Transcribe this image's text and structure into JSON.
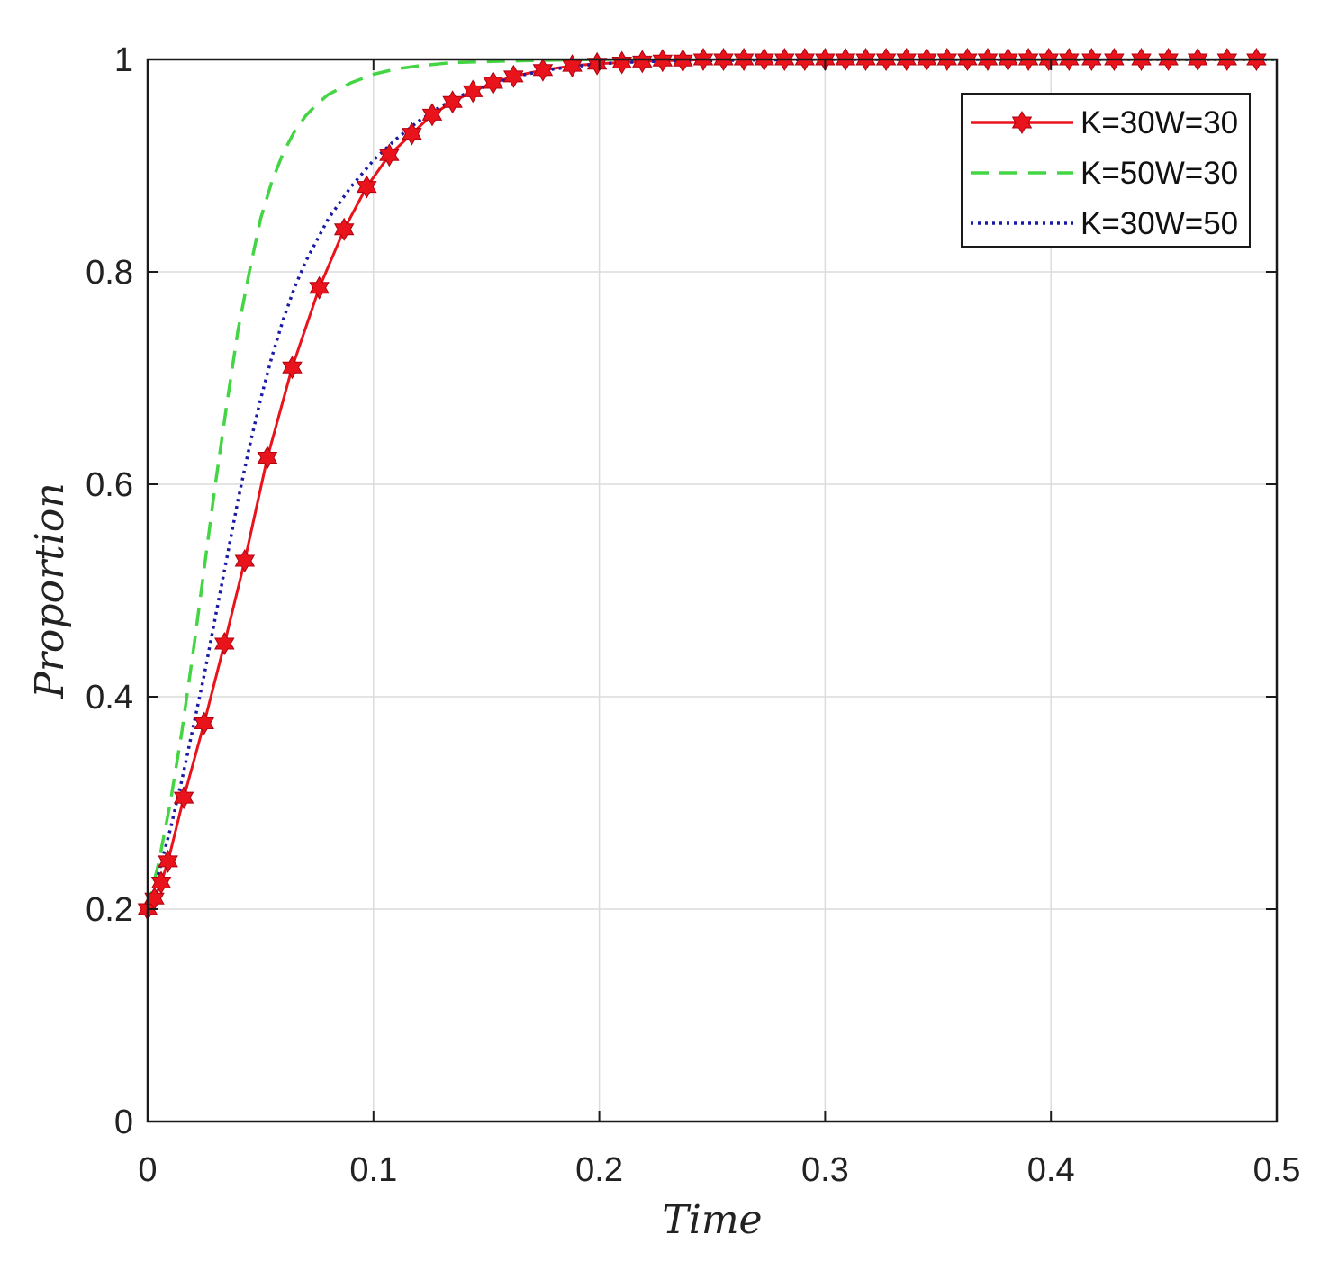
{
  "chart_data": {
    "type": "line",
    "xlabel": "Time",
    "ylabel": "Proportion",
    "xlim": [
      0,
      0.5
    ],
    "ylim": [
      0,
      1
    ],
    "xticks": [
      "0",
      "0.1",
      "0.2",
      "0.3",
      "0.4",
      "0.5"
    ],
    "yticks": [
      "0",
      "0.2",
      "0.4",
      "0.6",
      "0.8",
      "1"
    ],
    "grid": true,
    "legend_position": "top-right",
    "series": [
      {
        "name": "K=30W=30",
        "color": "#e8131b",
        "style": "solid",
        "marker": "hexagram",
        "x": [
          0,
          0.003,
          0.006,
          0.009,
          0.016,
          0.025,
          0.034,
          0.043,
          0.053,
          0.064,
          0.076,
          0.087,
          0.097,
          0.107,
          0.117,
          0.126,
          0.135,
          0.144,
          0.153,
          0.162,
          0.175,
          0.188,
          0.199,
          0.21,
          0.219,
          0.228,
          0.237,
          0.246,
          0.255,
          0.264,
          0.273,
          0.282,
          0.291,
          0.3,
          0.309,
          0.318,
          0.327,
          0.336,
          0.345,
          0.354,
          0.363,
          0.372,
          0.381,
          0.39,
          0.399,
          0.408,
          0.418,
          0.428,
          0.44,
          0.452,
          0.465,
          0.478,
          0.491
        ],
        "y": [
          0.2,
          0.21,
          0.225,
          0.245,
          0.305,
          0.375,
          0.45,
          0.528,
          0.625,
          0.71,
          0.785,
          0.84,
          0.88,
          0.91,
          0.93,
          0.948,
          0.96,
          0.97,
          0.978,
          0.984,
          0.99,
          0.994,
          0.996,
          0.997,
          0.998,
          0.999,
          0.999,
          1,
          1,
          1,
          1,
          1,
          1,
          1,
          1,
          1,
          1,
          1,
          1,
          1,
          1,
          1,
          1,
          1,
          1,
          1,
          1,
          1,
          1,
          1,
          1,
          1,
          1
        ]
      },
      {
        "name": "K=50W=30",
        "color": "#44d544",
        "style": "dashed",
        "x": [
          0,
          0.005,
          0.01,
          0.015,
          0.02,
          0.025,
          0.03,
          0.035,
          0.04,
          0.045,
          0.05,
          0.055,
          0.06,
          0.065,
          0.07,
          0.075,
          0.08,
          0.09,
          0.1,
          0.11,
          0.12,
          0.135,
          0.15,
          0.17,
          0.2,
          0.25,
          0.3,
          0.4,
          0.5
        ],
        "y": [
          0.2,
          0.245,
          0.3,
          0.365,
          0.44,
          0.52,
          0.6,
          0.675,
          0.745,
          0.8,
          0.85,
          0.885,
          0.912,
          0.932,
          0.947,
          0.958,
          0.967,
          0.978,
          0.986,
          0.991,
          0.994,
          0.997,
          0.998,
          0.999,
          1,
          1,
          1,
          1,
          1
        ]
      },
      {
        "name": "K=30W=50",
        "color": "#1a1aa6",
        "style": "dotted",
        "x": [
          0,
          0.005,
          0.01,
          0.015,
          0.02,
          0.025,
          0.03,
          0.035,
          0.04,
          0.045,
          0.05,
          0.055,
          0.06,
          0.065,
          0.07,
          0.075,
          0.08,
          0.09,
          0.1,
          0.11,
          0.12,
          0.13,
          0.14,
          0.15,
          0.165,
          0.18,
          0.2,
          0.22,
          0.25,
          0.3,
          0.4,
          0.5
        ],
        "y": [
          0.2,
          0.235,
          0.275,
          0.32,
          0.37,
          0.42,
          0.475,
          0.53,
          0.585,
          0.635,
          0.68,
          0.72,
          0.755,
          0.785,
          0.81,
          0.83,
          0.85,
          0.88,
          0.905,
          0.925,
          0.942,
          0.956,
          0.967,
          0.975,
          0.985,
          0.991,
          0.996,
          0.998,
          0.999,
          1,
          1,
          1
        ]
      }
    ]
  }
}
